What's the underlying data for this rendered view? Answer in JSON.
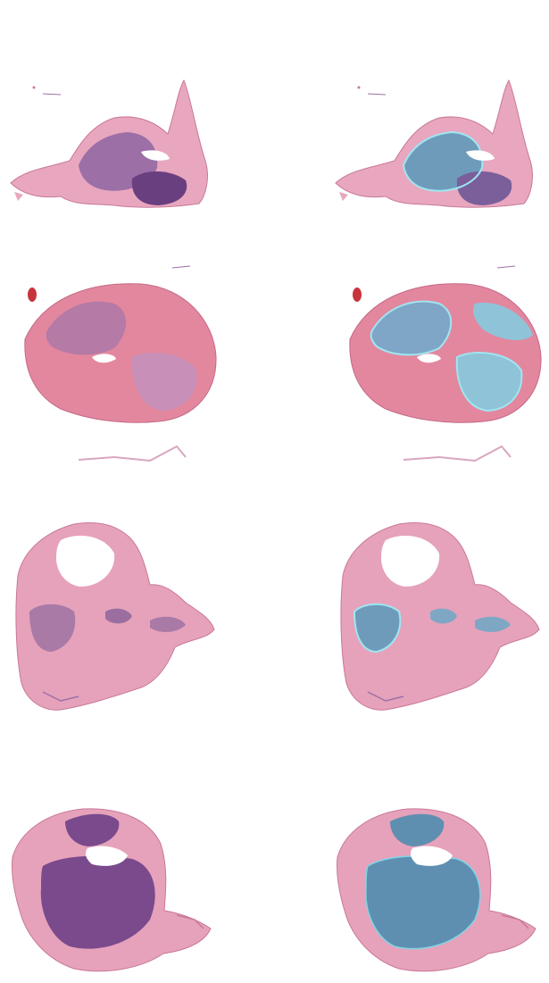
{
  "colors": {
    "background": "#ffffff",
    "eosin_pink": "#d97a9f",
    "eosin_light": "#ecb3c8",
    "hematoxylin_purple": "#7a4a8c",
    "hematoxylin_dark": "#5a2f6e",
    "blood_red": "#c8343c",
    "overlay_cyan": "#7fd4e6",
    "overlay_blue": "#5f8fb0"
  },
  "grid": {
    "rows": [
      {
        "left": {
          "type": "tissue-slide",
          "overlay": false
        },
        "right": {
          "type": "tissue-slide",
          "overlay": true
        }
      },
      {
        "left": {
          "type": "tissue-slide",
          "overlay": false
        },
        "right": {
          "type": "tissue-slide",
          "overlay": true
        }
      },
      {
        "left": {
          "type": "tissue-slide",
          "overlay": false
        },
        "right": {
          "type": "tissue-slide",
          "overlay": true
        }
      },
      {
        "left": {
          "type": "tissue-slide",
          "overlay": false
        },
        "right": {
          "type": "tissue-slide",
          "overlay": true
        }
      }
    ]
  }
}
